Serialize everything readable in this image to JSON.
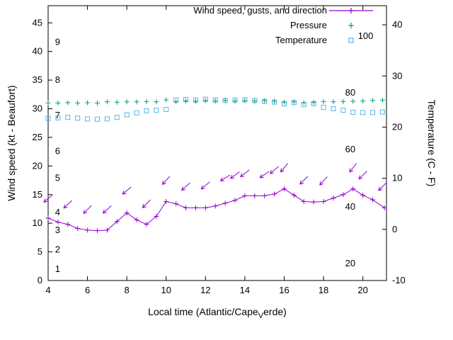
{
  "chart_data": {
    "type": "line",
    "legend": [
      {
        "label": "Wind speed, gusts, and direction",
        "marker": "line-plus",
        "color": "#9400d3"
      },
      {
        "label": "Pressure",
        "marker": "plus",
        "color": "#009e73"
      },
      {
        "label": "Temperature",
        "marker": "open-square",
        "color": "#56b4e9"
      }
    ],
    "x_axis": {
      "label_prefix": "Local time (Atlantic/Cape",
      "label_sub": "V",
      "label_suffix": "erde)",
      "min": 4,
      "max": 21.2,
      "ticks": [
        4,
        6,
        8,
        10,
        12,
        14,
        16,
        18,
        20
      ]
    },
    "y_left": {
      "label": "Wind speed (kt - Beaufort)",
      "min": 0,
      "max": 48,
      "ticks": [
        0,
        5,
        10,
        15,
        20,
        25,
        30,
        35,
        40,
        45
      ]
    },
    "y_right": {
      "label": "Temperature (C - F)",
      "min": -10,
      "max": 43.75,
      "ticks": [
        -10,
        0,
        10,
        20,
        30,
        40
      ]
    },
    "beaufort_labels": [
      {
        "text": "1",
        "y_kt": 2.0
      },
      {
        "text": "2",
        "y_kt": 5.4
      },
      {
        "text": "3",
        "y_kt": 8.8
      },
      {
        "text": "4",
        "y_kt": 11.9
      },
      {
        "text": "5",
        "y_kt": 17.9
      },
      {
        "text": "6",
        "y_kt": 22.6
      },
      {
        "text": "7",
        "y_kt": 28.8
      },
      {
        "text": "8",
        "y_kt": 35.0
      },
      {
        "text": "9",
        "y_kt": 41.6
      }
    ],
    "fahrenheit_labels": [
      {
        "text": "20",
        "y_c": -6.7,
        "x_time": 19.1
      },
      {
        "text": "40",
        "y_c": 4.4,
        "x_time": 19.1
      },
      {
        "text": "60",
        "y_c": 15.6,
        "x_time": 19.1
      },
      {
        "text": "80",
        "y_c": 26.7,
        "x_time": 19.1
      },
      {
        "text": "100",
        "y_c": 37.8,
        "x_time": 19.75
      }
    ],
    "series": {
      "wind": {
        "name": "Wind speed",
        "color": "#9400d3",
        "plotted_on": "y_left",
        "units": "kt",
        "x": [
          4,
          4.5,
          5,
          5.5,
          6,
          6.5,
          7,
          7.5,
          8,
          8.5,
          9,
          9.5,
          10,
          10.5,
          11,
          11.5,
          12,
          12.5,
          13,
          13.5,
          14,
          14.5,
          15,
          15.5,
          16,
          16.5,
          17,
          17.5,
          18,
          18.5,
          19,
          19.5,
          20,
          20.5,
          21.1
        ],
        "y": [
          10.9,
          10.2,
          9.8,
          9.1,
          8.8,
          8.7,
          8.8,
          10.3,
          11.8,
          10.6,
          9.8,
          11.2,
          13.8,
          13.4,
          12.7,
          12.7,
          12.7,
          13.0,
          13.5,
          14.0,
          14.8,
          14.8,
          14.8,
          15.1,
          16.0,
          14.9,
          13.8,
          13.7,
          13.8,
          14.4,
          15.0,
          16.0,
          14.9,
          14.1,
          12.7
        ]
      },
      "gusts": {
        "name": "Wind gusts and direction",
        "color": "#9400d3",
        "plotted_on": "y_left",
        "units": "kt",
        "vectors": [
          [
            4,
            14.3,
            140
          ],
          [
            5,
            13.3,
            137
          ],
          [
            6,
            12.4,
            135
          ],
          [
            7,
            12.4,
            138
          ],
          [
            8,
            15.7,
            140
          ],
          [
            9,
            13.4,
            135
          ],
          [
            10,
            17.5,
            132
          ],
          [
            11,
            16.4,
            138
          ],
          [
            12,
            16.6,
            140
          ],
          [
            13,
            17.9,
            148
          ],
          [
            13.5,
            18.4,
            144
          ],
          [
            14,
            18.7,
            142
          ],
          [
            15,
            18.5,
            145
          ],
          [
            15.5,
            19.3,
            140
          ],
          [
            16,
            19.7,
            130
          ],
          [
            17,
            17.5,
            135
          ],
          [
            18,
            17.4,
            132
          ],
          [
            19.5,
            19.7,
            128
          ],
          [
            20,
            18.4,
            136
          ],
          [
            21,
            16.4,
            135
          ]
        ]
      },
      "pressure": {
        "name": "Pressure",
        "color": "#009e73",
        "plotted_on": "y_left",
        "x": [
          4,
          4.5,
          5,
          5.5,
          6,
          6.5,
          7,
          7.5,
          8,
          8.5,
          9,
          9.5,
          10,
          10.5,
          11,
          11.5,
          12,
          12.5,
          13,
          13.5,
          14,
          14.5,
          15,
          15.5,
          16,
          16.5,
          17,
          17.5,
          18,
          18.5,
          19,
          19.5,
          20,
          20.5,
          21
        ],
        "y": [
          31.0,
          31.0,
          31.05,
          31.0,
          31.05,
          31.0,
          31.2,
          31.15,
          31.2,
          31.2,
          31.25,
          31.2,
          31.55,
          31.25,
          31.35,
          31.3,
          31.4,
          31.35,
          31.45,
          31.35,
          31.4,
          31.35,
          31.4,
          31.3,
          31.15,
          31.2,
          31.05,
          31.1,
          31.25,
          31.2,
          31.25,
          31.3,
          31.35,
          31.45,
          31.5
        ]
      },
      "temperature": {
        "name": "Temperature",
        "color": "#56b4e9",
        "plotted_on": "y_right",
        "units": "C",
        "x": [
          4,
          4.5,
          5,
          5.5,
          6,
          6.5,
          7,
          7.5,
          8,
          8.5,
          9,
          9.5,
          10,
          10.5,
          11,
          11.5,
          12,
          12.5,
          13,
          13.5,
          14,
          14.5,
          15,
          15.5,
          16,
          16.5,
          17,
          17.5,
          18,
          18.5,
          19,
          19.5,
          20,
          20.5,
          21
        ],
        "y": [
          21.7,
          21.8,
          21.9,
          21.75,
          21.6,
          21.55,
          21.6,
          21.9,
          22.4,
          22.8,
          23.2,
          23.3,
          23.45,
          25.3,
          25.4,
          25.3,
          25.45,
          25.3,
          25.2,
          25.3,
          25.35,
          25.2,
          25.0,
          24.9,
          24.55,
          24.8,
          24.4,
          24.6,
          23.85,
          23.6,
          23.3,
          22.9,
          22.85,
          22.85,
          22.95
        ]
      }
    }
  }
}
